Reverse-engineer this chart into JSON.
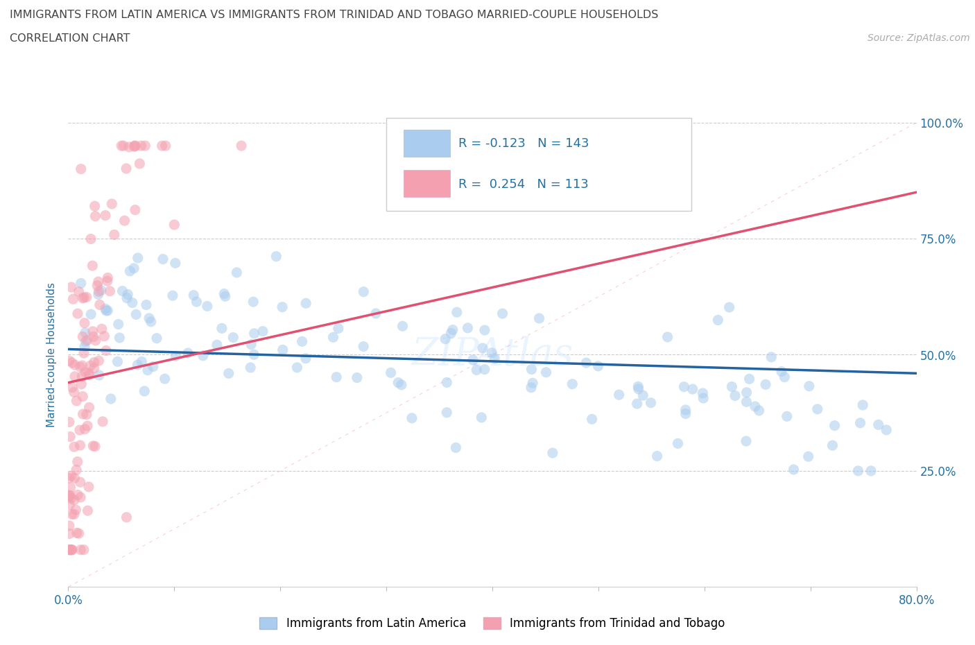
{
  "title_line1": "IMMIGRANTS FROM LATIN AMERICA VS IMMIGRANTS FROM TRINIDAD AND TOBAGO MARRIED-COUPLE HOUSEHOLDS",
  "title_line2": "CORRELATION CHART",
  "source_text": "Source: ZipAtlas.com",
  "ylabel": "Married-couple Households",
  "legend_series": [
    {
      "label": "Immigrants from Latin America",
      "color": "#aaccee",
      "R": -0.123,
      "N": 143
    },
    {
      "label": "Immigrants from Trinidad and Tobago",
      "color": "#f4a0b0",
      "R": 0.254,
      "N": 113
    }
  ],
  "xmin": 0.0,
  "xmax": 0.8,
  "ymin": 0.0,
  "ymax": 1.0,
  "bg_color": "#ffffff",
  "scatter_alpha": 0.55,
  "scatter_size": 120,
  "title_color": "#555555",
  "tick_color": "#2471a3",
  "blue_line_color": "#2462a0",
  "pink_line_color": "#e05070",
  "dashed_line_color": "#f4a0b0",
  "grid_color": "#cccccc",
  "watermark": "ZIPAtlas",
  "watermark_color": "#ddeeff",
  "watermark_alpha": 0.6
}
